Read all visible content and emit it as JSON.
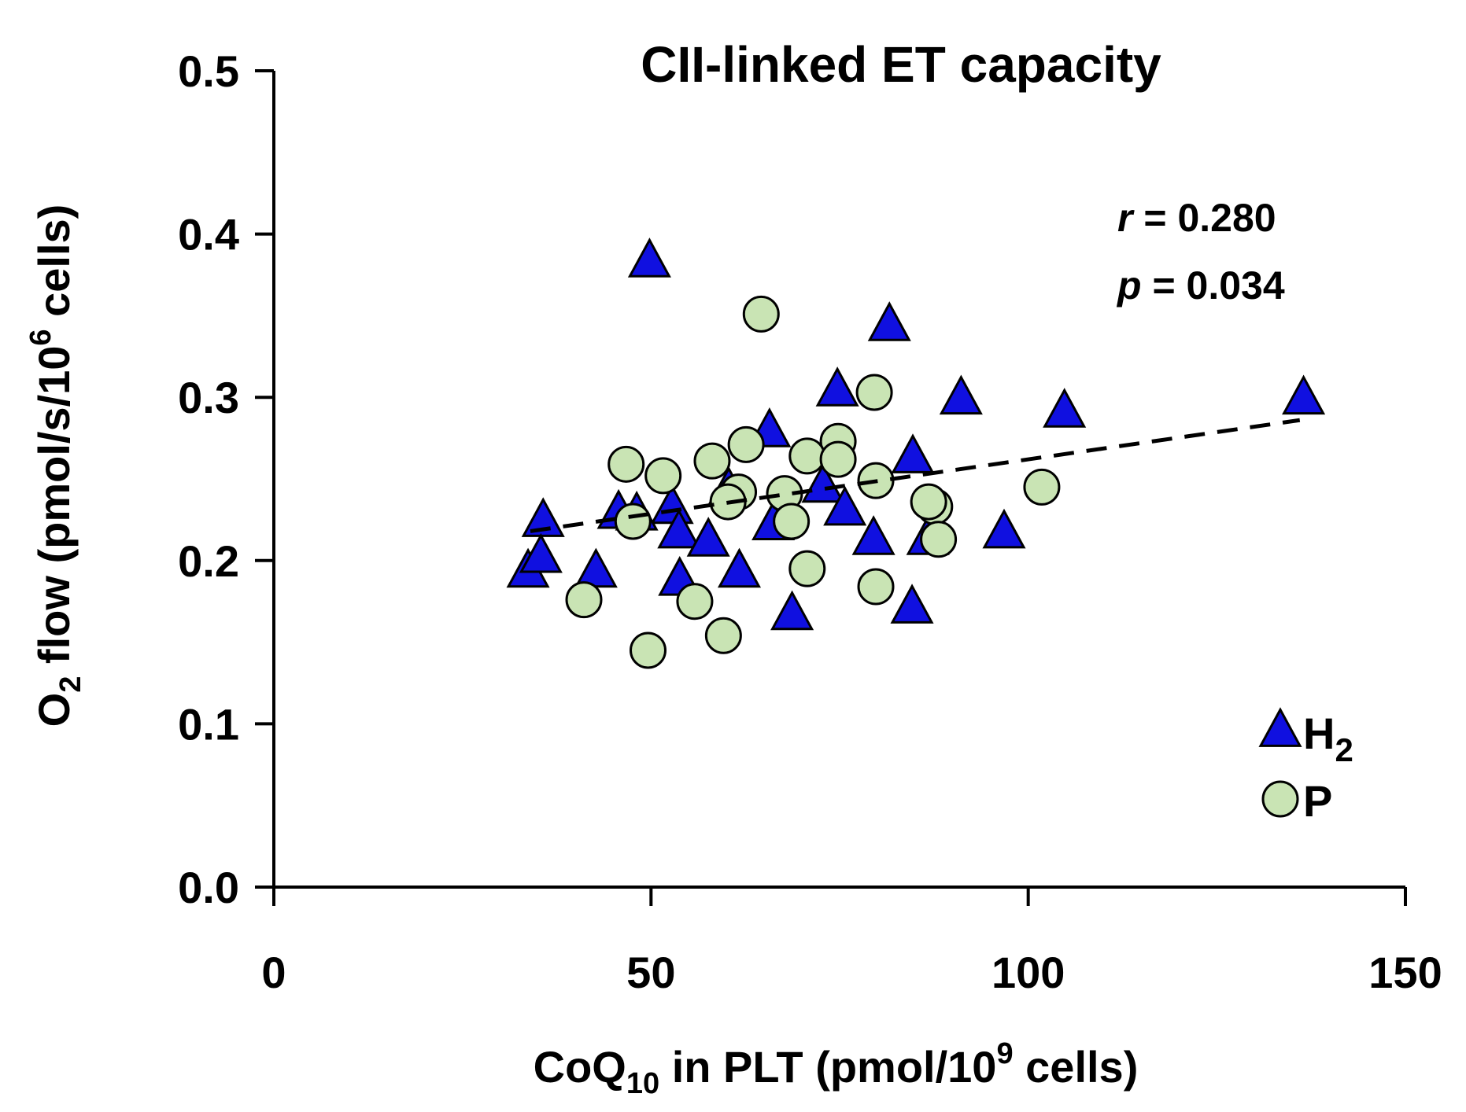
{
  "chart_data": {
    "type": "scatter",
    "title": "CII-linked ET capacity",
    "xlabel": {
      "prefix": "CoQ",
      "sub": "10",
      "middle": " in PLT (pmol/10",
      "sup": "9",
      "suffix": " cells)"
    },
    "ylabel": {
      "prefix": "O",
      "sub": "2",
      "middle": " flow (pmol/s/10",
      "sup": "6",
      "suffix": " cells)"
    },
    "xlim": [
      0,
      150
    ],
    "ylim": [
      0,
      0.5
    ],
    "xticks": [
      0,
      50,
      100,
      150
    ],
    "xtick_labels": [
      "0",
      "50",
      "100",
      "150"
    ],
    "yticks": [
      0,
      0.1,
      0.2,
      0.3,
      0.4,
      0.5
    ],
    "ytick_labels": [
      "0.0",
      "0.1",
      "0.2",
      "0.3",
      "0.4",
      "0.5"
    ],
    "grid": false,
    "legend_position": "bottom-right",
    "stats": {
      "r_symbol": "r",
      "r_text": " = 0.280",
      "p_symbol": "p",
      "p_text": " = 0.034"
    },
    "trendline": {
      "style": "dashed",
      "x": [
        34,
        136
      ],
      "y": [
        0.218,
        0.286
      ]
    },
    "series": [
      {
        "name": "H2",
        "label_main": "H",
        "label_sub": "2",
        "marker": "triangle",
        "color": "#1010e0",
        "stroke": "#000000",
        "points": [
          {
            "x": 49.8,
            "y": 0.383
          },
          {
            "x": 81.6,
            "y": 0.344
          },
          {
            "x": 74.7,
            "y": 0.304
          },
          {
            "x": 91.1,
            "y": 0.299
          },
          {
            "x": 104.8,
            "y": 0.291
          },
          {
            "x": 136.5,
            "y": 0.299
          },
          {
            "x": 65.7,
            "y": 0.279
          },
          {
            "x": 84.7,
            "y": 0.263
          },
          {
            "x": 35.7,
            "y": 0.224
          },
          {
            "x": 45.7,
            "y": 0.229
          },
          {
            "x": 52.8,
            "y": 0.232
          },
          {
            "x": 53.7,
            "y": 0.217
          },
          {
            "x": 57.6,
            "y": 0.212
          },
          {
            "x": 60.3,
            "y": 0.243
          },
          {
            "x": 66.2,
            "y": 0.222
          },
          {
            "x": 72.8,
            "y": 0.245
          },
          {
            "x": 75.7,
            "y": 0.231
          },
          {
            "x": 79.5,
            "y": 0.213
          },
          {
            "x": 86.7,
            "y": 0.213
          },
          {
            "x": 96.8,
            "y": 0.217
          },
          {
            "x": 33.7,
            "y": 0.193
          },
          {
            "x": 35.4,
            "y": 0.202
          },
          {
            "x": 42.7,
            "y": 0.193
          },
          {
            "x": 53.8,
            "y": 0.188
          },
          {
            "x": 61.7,
            "y": 0.193
          },
          {
            "x": 68.7,
            "y": 0.167
          },
          {
            "x": 84.6,
            "y": 0.171
          },
          {
            "x": 48.1,
            "y": 0.228
          }
        ]
      },
      {
        "name": "P",
        "label_main": "P",
        "label_sub": "",
        "marker": "circle",
        "color": "#c9e4b4",
        "stroke": "#000000",
        "points": [
          {
            "x": 64.6,
            "y": 0.351
          },
          {
            "x": 79.6,
            "y": 0.303
          },
          {
            "x": 62.6,
            "y": 0.271
          },
          {
            "x": 74.8,
            "y": 0.273
          },
          {
            "x": 70.7,
            "y": 0.264
          },
          {
            "x": 74.8,
            "y": 0.262
          },
          {
            "x": 46.7,
            "y": 0.259
          },
          {
            "x": 58.1,
            "y": 0.261
          },
          {
            "x": 51.6,
            "y": 0.252
          },
          {
            "x": 79.8,
            "y": 0.249
          },
          {
            "x": 61.6,
            "y": 0.242
          },
          {
            "x": 67.7,
            "y": 0.241
          },
          {
            "x": 60.2,
            "y": 0.236
          },
          {
            "x": 87.6,
            "y": 0.233
          },
          {
            "x": 86.8,
            "y": 0.236
          },
          {
            "x": 101.8,
            "y": 0.245
          },
          {
            "x": 47.6,
            "y": 0.224
          },
          {
            "x": 68.6,
            "y": 0.224
          },
          {
            "x": 88.1,
            "y": 0.213
          },
          {
            "x": 70.7,
            "y": 0.195
          },
          {
            "x": 79.8,
            "y": 0.184
          },
          {
            "x": 41.1,
            "y": 0.176
          },
          {
            "x": 55.8,
            "y": 0.175
          },
          {
            "x": 59.6,
            "y": 0.154
          },
          {
            "x": 49.6,
            "y": 0.145
          }
        ]
      }
    ]
  }
}
